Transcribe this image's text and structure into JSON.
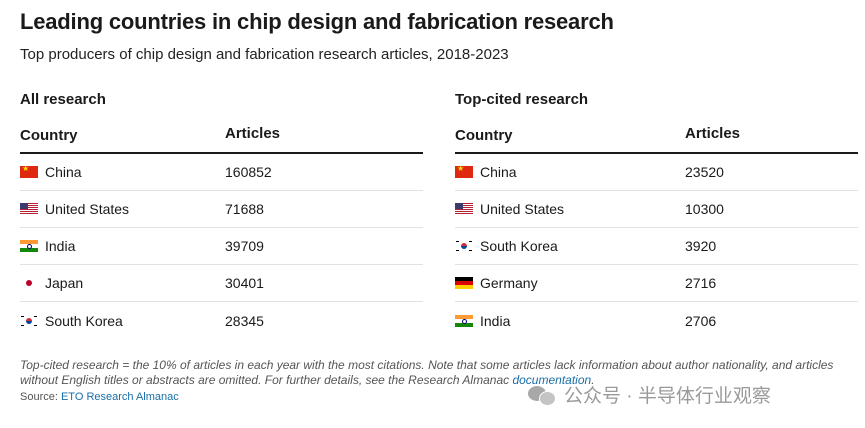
{
  "title": "Leading countries in chip design and fabrication research",
  "subtitle": "Top producers of chip design and fabrication research articles, 2018-2023",
  "chart_data": [
    {
      "type": "table",
      "title": "All research",
      "columns": [
        "Country",
        "Articles"
      ],
      "rows": [
        {
          "country": "China",
          "flag": "flag-china-icon",
          "articles": 160852
        },
        {
          "country": "United States",
          "flag": "flag-us-icon",
          "articles": 71688
        },
        {
          "country": "India",
          "flag": "flag-india-icon",
          "articles": 39709
        },
        {
          "country": "Japan",
          "flag": "flag-japan-icon",
          "articles": 30401
        },
        {
          "country": "South Korea",
          "flag": "flag-korea-icon",
          "articles": 28345
        }
      ]
    },
    {
      "type": "table",
      "title": "Top-cited research",
      "columns": [
        "Country",
        "Articles"
      ],
      "rows": [
        {
          "country": "China",
          "flag": "flag-china-icon",
          "articles": 23520
        },
        {
          "country": "United States",
          "flag": "flag-us-icon",
          "articles": 10300
        },
        {
          "country": "South Korea",
          "flag": "flag-korea-icon",
          "articles": 3920
        },
        {
          "country": "Germany",
          "flag": "flag-germany-icon",
          "articles": 2716
        },
        {
          "country": "India",
          "flag": "flag-india-icon",
          "articles": 2706
        }
      ]
    }
  ],
  "note": {
    "text": "Top-cited research = the 10% of articles in each year with the most citations. Note that some articles lack information about author nationality, and articles without English titles or abstracts are omitted. For further details, see the Research Almanac ",
    "link_label": "documentation",
    "end": "."
  },
  "source": {
    "label": "Source: ",
    "link_label": "ETO Research Almanac"
  },
  "watermark": {
    "text": "公众号 · 半导体行业观察",
    "icon": "wechat-icon"
  },
  "colors": {
    "text": "#1a1a1a",
    "link": "#1a6fa8",
    "rule": "#1a1a1a",
    "divider": "#e2e2e2"
  }
}
